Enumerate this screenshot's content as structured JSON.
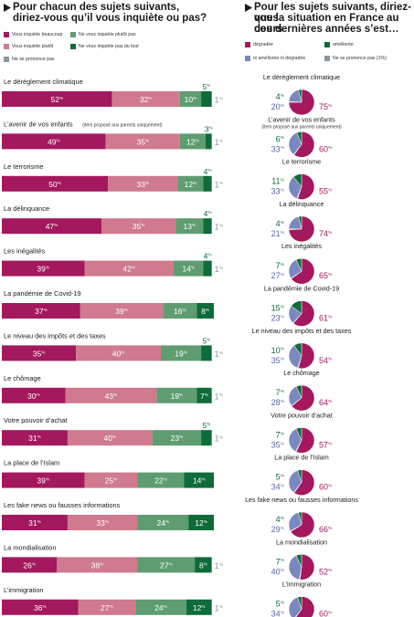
{
  "left_panel": {
    "title_line1": "Pour chacun des sujets suivants,",
    "title_line2": "diriez-vous qu’il vous inquiète ou pas?",
    "legend": [
      {
        "label": "Vous inquiète beaucoup",
        "color": "#a3185e"
      },
      {
        "label": "Ne vous inquiète plutôt pas",
        "color": "#5f9d71"
      },
      {
        "label": "Vous inquiète plutôt",
        "color": "#cf7a8f"
      },
      {
        "label": "Ne vous inquiète pas du tout",
        "color": "#0e6b3a"
      },
      {
        "label": "Ne se prononce pas",
        "color": "#8c969c"
      }
    ]
  },
  "right_panel": {
    "title_line1": "Pour les sujets suivants, diriez-vous",
    "title_line2": "que la situation en France au cours",
    "title_line3": "des dernières années s’est…",
    "legend": [
      {
        "label": "dégradée",
        "color": "#a3185e"
      },
      {
        "label": "améliorée",
        "color": "#0e6b3a"
      },
      {
        "label": "ni améliorée ni dégradée",
        "color": "#7b88c0"
      },
      {
        "label": "Ne se prononce pas (1%)",
        "color": "#8c969c"
      }
    ]
  },
  "chart_data": [
    {
      "type": "bar",
      "stacked": true,
      "percent_suffix": "%",
      "categories": [
        "Le dérèglement climatique",
        "L’avenir de vos enfants",
        "Le terrorisme",
        "La délinquance",
        "Les inégalités",
        "La pandémie de Covid-19",
        "Le niveau des impôts et des taxes",
        "Le chômage",
        "Votre pouvoir d’achat",
        "La place de l’Islam",
        "Les fake news ou fausses informations",
        "La mondialisation",
        "L’immigration"
      ],
      "category_notes": [
        "",
        "(item proposé aux parents uniquement)",
        "",
        "",
        "",
        "",
        "",
        "",
        "",
        "",
        "",
        "",
        ""
      ],
      "series": [
        {
          "name": "Vous inquiète beaucoup",
          "color": "#a3185e",
          "values": [
            52,
            49,
            50,
            47,
            39,
            37,
            35,
            30,
            31,
            39,
            31,
            26,
            36
          ]
        },
        {
          "name": "Vous inquiète plutôt",
          "color": "#cf7a8f",
          "values": [
            32,
            35,
            33,
            35,
            42,
            39,
            40,
            43,
            40,
            25,
            33,
            38,
            27
          ]
        },
        {
          "name": "Ne vous inquiète plutôt pas",
          "color": "#5f9d71",
          "values": [
            10,
            12,
            12,
            13,
            14,
            16,
            19,
            19,
            23,
            22,
            24,
            27,
            24
          ]
        },
        {
          "name": "Ne vous inquiète pas du tout",
          "color": "#0e6b3a",
          "values": [
            5,
            3,
            4,
            4,
            4,
            8,
            5,
            7,
            5,
            14,
            12,
            8,
            12
          ]
        },
        {
          "name": "Ne se prononce pas",
          "color": "#8c969c",
          "values": [
            1,
            1,
            1,
            1,
            1,
            0,
            1,
            1,
            1,
            0,
            0,
            1,
            1
          ]
        }
      ]
    },
    {
      "type": "pie",
      "percent_suffix": "%",
      "categories": [
        "Le dérèglement climatique",
        "L’avenir de vos enfants",
        "Le terrorisme",
        "La délinquance",
        "Les inégalités",
        "La pandémie de Covid-19",
        "Le niveau des impôts et des taxes",
        "Le chômage",
        "Votre pouvoir d’achat",
        "La place de l’Islam",
        "Les fake news ou fausses informations",
        "La mondialisation",
        "L’immigration"
      ],
      "category_notes": [
        "",
        "(item proposé aux parents uniquement)",
        "",
        "",
        "",
        "",
        "",
        "",
        "",
        "",
        "",
        "",
        ""
      ],
      "series": [
        {
          "name": "dégradée",
          "color": "#a3185e",
          "values": [
            75,
            60,
            55,
            74,
            65,
            61,
            54,
            64,
            57,
            60,
            66,
            52,
            60
          ]
        },
        {
          "name": "améliorée",
          "color": "#0e6b3a",
          "values": [
            4,
            6,
            11,
            4,
            7,
            15,
            10,
            7,
            7,
            5,
            4,
            7,
            5
          ]
        },
        {
          "name": "ni améliorée ni dégradée",
          "color": "#7b88c0",
          "values": [
            20,
            33,
            33,
            21,
            27,
            23,
            35,
            28,
            35,
            34,
            29,
            40,
            34
          ]
        },
        {
          "name": "Ne se prononce pas",
          "color": "#8c969c",
          "values": [
            1,
            1,
            1,
            1,
            1,
            1,
            1,
            1,
            1,
            1,
            1,
            1,
            1
          ]
        }
      ]
    }
  ]
}
